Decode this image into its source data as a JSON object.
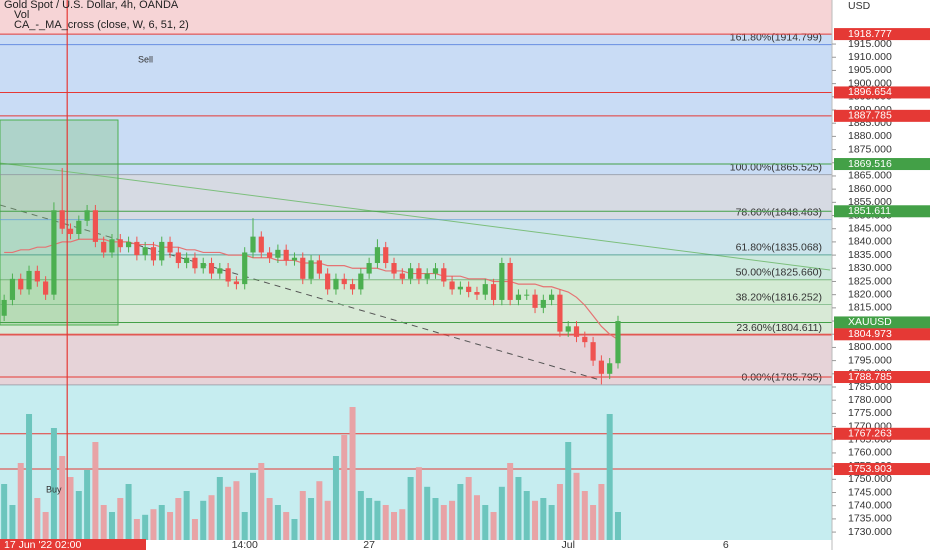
{
  "chart_data": {
    "type": "candlestick",
    "title": "Gold Spot / U.S. Dollar, 4h, OANDA",
    "indicators": [
      "Vol",
      "CA_-_MA_cross (close, W, 6, 51, 2)"
    ],
    "currency": "USD",
    "signals": [
      "Sell",
      "Buy"
    ],
    "up_color": "#4caf50",
    "down_color": "#ef5350",
    "volume_up_color": "#6cc5bd",
    "volume_down_color": "#e8a3a6",
    "ma_color": "#e57373",
    "ylim": [
      1727.0,
      1931.7
    ],
    "y2lim": [
      0,
      100
    ],
    "xlim": [
      -0.5,
      99.8
    ],
    "xticks": [
      {
        "value": 29,
        "label": "14:00"
      },
      {
        "value": 44,
        "label": "27"
      },
      {
        "value": 68,
        "label": "Jul"
      },
      {
        "value": 87,
        "label": "6"
      }
    ],
    "crosshair": {
      "value": 7.6,
      "label": "17 Jun '22  02:00",
      "color": "#e53935"
    },
    "yticks": [
      {
        "value": 1915,
        "label": "1915.000"
      },
      {
        "value": 1910,
        "label": "1910.000"
      },
      {
        "value": 1905,
        "label": "1905.000"
      },
      {
        "value": 1900,
        "label": "1900.000"
      },
      {
        "value": 1895,
        "label": "1895.000"
      },
      {
        "value": 1890,
        "label": "1890.000"
      },
      {
        "value": 1885,
        "label": "1885.000"
      },
      {
        "value": 1880,
        "label": "1880.000"
      },
      {
        "value": 1875,
        "label": "1875.000"
      },
      {
        "value": 1870,
        "label": "1870.000"
      },
      {
        "value": 1865,
        "label": "1865.000"
      },
      {
        "value": 1860,
        "label": "1860.000"
      },
      {
        "value": 1855,
        "label": "1855.000"
      },
      {
        "value": 1850,
        "label": "1850.000"
      },
      {
        "value": 1845,
        "label": "1845.000"
      },
      {
        "value": 1840,
        "label": "1840.000"
      },
      {
        "value": 1835,
        "label": "1835.000"
      },
      {
        "value": 1830,
        "label": "1830.000"
      },
      {
        "value": 1825,
        "label": "1825.000"
      },
      {
        "value": 1820,
        "label": "1820.000"
      },
      {
        "value": 1815,
        "label": "1815.000"
      },
      {
        "value": 1810,
        "label": "1810.000"
      },
      {
        "value": 1805,
        "label": "1805.000"
      },
      {
        "value": 1800,
        "label": "1800.000"
      },
      {
        "value": 1795,
        "label": "1795.000"
      },
      {
        "value": 1790,
        "label": "1790.000"
      },
      {
        "value": 1785,
        "label": "1785.000"
      },
      {
        "value": 1780,
        "label": "1780.000"
      },
      {
        "value": 1775,
        "label": "1775.000"
      },
      {
        "value": 1770,
        "label": "1770.000"
      },
      {
        "value": 1765,
        "label": "1765.000"
      },
      {
        "value": 1760,
        "label": "1760.000"
      },
      {
        "value": 1755,
        "label": "1755.000"
      },
      {
        "value": 1750,
        "label": "1750.000"
      },
      {
        "value": 1745,
        "label": "1745.000"
      },
      {
        "value": 1740,
        "label": "1740.000"
      },
      {
        "value": 1735,
        "label": "1735.000"
      },
      {
        "value": 1730,
        "label": "1730.000"
      }
    ],
    "levels": [
      {
        "value": 1918.777,
        "label": "1918.777",
        "color": "#e53935"
      },
      {
        "value": 1896.654,
        "label": "1896.654",
        "color": "#e53935"
      },
      {
        "value": 1887.785,
        "label": "1887.785",
        "color": "#e53935"
      },
      {
        "value": 1869.516,
        "label": "1869.516",
        "color": "#43a047"
      },
      {
        "value": 1851.611,
        "label": "1851.611",
        "color": "#43a047"
      },
      {
        "value": 1809.47,
        "label": "XAUUSD",
        "color": "#43a047"
      },
      {
        "value": 1804.973,
        "label": "1804.973",
        "color": "#e53935"
      },
      {
        "value": 1788.785,
        "label": "1788.785",
        "color": "#e53935"
      },
      {
        "value": 1767.263,
        "label": "1767.263",
        "color": "#e53935"
      },
      {
        "value": 1753.903,
        "label": "1753.903",
        "color": "#e53935"
      }
    ],
    "fib": [
      {
        "value": 1914.799,
        "label": "161.80%(1914.799)",
        "color": "#3f6fd8",
        "zone": "#c9dcf5"
      },
      {
        "value": 1865.525,
        "label": "100.00%(1865.525)",
        "color": "#8a8f99",
        "zone": "#d6dae3"
      },
      {
        "value": 1848.463,
        "label": "78.60%(1848.463)",
        "color": "#5c9bd6",
        "zone": "#cce4ec"
      },
      {
        "value": 1835.068,
        "label": "61.80%(1835.068)",
        "color": "#2e8f7a",
        "zone": "#cde8df"
      },
      {
        "value": 1825.66,
        "label": "50.00%(1825.660)",
        "color": "#5aa25a",
        "zone": "#d3ead3"
      },
      {
        "value": 1816.252,
        "label": "38.20%(1816.252)",
        "color": "#6fb07a",
        "zone": "#d8e9d6"
      },
      {
        "value": 1804.611,
        "label": "23.60%(1804.611)",
        "color": "#e05555",
        "zone": "#e6d3d8"
      },
      {
        "value": 1785.795,
        "label": "0.00%(1785.795)",
        "color": "#8a8f99",
        "zone": "#c6edf0"
      }
    ],
    "open": [
      1812,
      1818,
      1826,
      1822,
      1829,
      1825,
      1820,
      1852,
      1845,
      1843,
      1848,
      1852,
      1840,
      1836,
      1841,
      1838,
      1840,
      1835,
      1838,
      1833,
      1840,
      1836,
      1832,
      1834,
      1830,
      1832,
      1828,
      1830,
      1825,
      1824,
      1836,
      1842,
      1836,
      1834,
      1837,
      1833,
      1834,
      1826,
      1833,
      1828,
      1822,
      1826,
      1824,
      1822,
      1828,
      1832,
      1838,
      1832,
      1828,
      1826,
      1830,
      1826,
      1828,
      1830,
      1825,
      1822,
      1823,
      1821,
      1820,
      1824,
      1818,
      1832,
      1818,
      1820,
      1820,
      1815,
      1818,
      1820,
      1806,
      1808,
      1804,
      1802,
      1795,
      1790,
      1794
    ],
    "high": [
      1820,
      1828,
      1828,
      1831,
      1831,
      1827,
      1855,
      1868,
      1847,
      1850,
      1854,
      1854,
      1842,
      1843,
      1843,
      1842,
      1842,
      1840,
      1840,
      1842,
      1842,
      1838,
      1836,
      1836,
      1834,
      1834,
      1832,
      1832,
      1827,
      1838,
      1849,
      1844,
      1838,
      1839,
      1839,
      1836,
      1836,
      1835,
      1835,
      1830,
      1828,
      1828,
      1826,
      1830,
      1834,
      1841,
      1840,
      1834,
      1830,
      1832,
      1832,
      1830,
      1832,
      1832,
      1827,
      1825,
      1825,
      1823,
      1826,
      1826,
      1834,
      1834,
      1822,
      1822,
      1822,
      1820,
      1822,
      1822,
      1810,
      1810,
      1806,
      1804,
      1797,
      1796,
      1812
    ],
    "low": [
      1810,
      1816,
      1820,
      1820,
      1823,
      1818,
      1818,
      1843,
      1841,
      1841,
      1846,
      1838,
      1834,
      1834,
      1836,
      1836,
      1833,
      1833,
      1831,
      1831,
      1834,
      1830,
      1830,
      1828,
      1828,
      1826,
      1826,
      1823,
      1822,
      1822,
      1834,
      1834,
      1832,
      1832,
      1831,
      1831,
      1824,
      1824,
      1826,
      1820,
      1820,
      1822,
      1820,
      1820,
      1826,
      1830,
      1830,
      1826,
      1824,
      1824,
      1824,
      1824,
      1826,
      1823,
      1820,
      1820,
      1819,
      1818,
      1818,
      1816,
      1816,
      1816,
      1816,
      1818,
      1813,
      1813,
      1816,
      1804,
      1804,
      1802,
      1800,
      1793,
      1786,
      1788,
      1792
    ],
    "close": [
      1818,
      1826,
      1822,
      1829,
      1825,
      1820,
      1852,
      1845,
      1843,
      1848,
      1852,
      1840,
      1836,
      1841,
      1838,
      1840,
      1835,
      1838,
      1833,
      1840,
      1836,
      1832,
      1834,
      1830,
      1832,
      1828,
      1830,
      1825,
      1824,
      1836,
      1842,
      1836,
      1834,
      1837,
      1833,
      1834,
      1826,
      1833,
      1828,
      1822,
      1826,
      1824,
      1822,
      1828,
      1832,
      1838,
      1832,
      1828,
      1826,
      1830,
      1826,
      1828,
      1830,
      1825,
      1822,
      1823,
      1821,
      1820,
      1824,
      1818,
      1832,
      1818,
      1820,
      1820,
      1815,
      1818,
      1820,
      1806,
      1808,
      1804,
      1802,
      1795,
      1790,
      1794,
      1810
    ],
    "volume": [
      40,
      25,
      55,
      90,
      30,
      20,
      80,
      60,
      45,
      35,
      50,
      70,
      25,
      20,
      30,
      40,
      15,
      18,
      22,
      25,
      20,
      30,
      35,
      15,
      28,
      32,
      45,
      38,
      42,
      20,
      48,
      55,
      30,
      25,
      20,
      15,
      35,
      30,
      42,
      28,
      60,
      75,
      95,
      35,
      30,
      28,
      25,
      20,
      22,
      45,
      52,
      38,
      30,
      25,
      28,
      40,
      45,
      32,
      25,
      20,
      38,
      55,
      45,
      35,
      28,
      30,
      25,
      40,
      70,
      48,
      35,
      25,
      40,
      90,
      20
    ],
    "ma": [
      1836,
      1836,
      1837,
      1837,
      1838,
      1838,
      1839,
      1840,
      1840,
      1841,
      1841,
      1841,
      1841,
      1840,
      1840,
      1840,
      1839,
      1839,
      1839,
      1838,
      1838,
      1838,
      1837,
      1837,
      1836,
      1836,
      1836,
      1835,
      1835,
      1835,
      1834,
      1834,
      1834,
      1833,
      1833,
      1833,
      1832,
      1832,
      1832,
      1831,
      1831,
      1831,
      1830,
      1830,
      1830,
      1830,
      1829,
      1829,
      1829,
      1828,
      1828,
      1828,
      1828,
      1827,
      1827,
      1827,
      1826,
      1826,
      1826,
      1825,
      1825,
      1825,
      1824,
      1824,
      1824,
      1823,
      1823,
      1822,
      1821,
      1819,
      1816,
      1812,
      1808,
      1805,
      1803
    ]
  }
}
